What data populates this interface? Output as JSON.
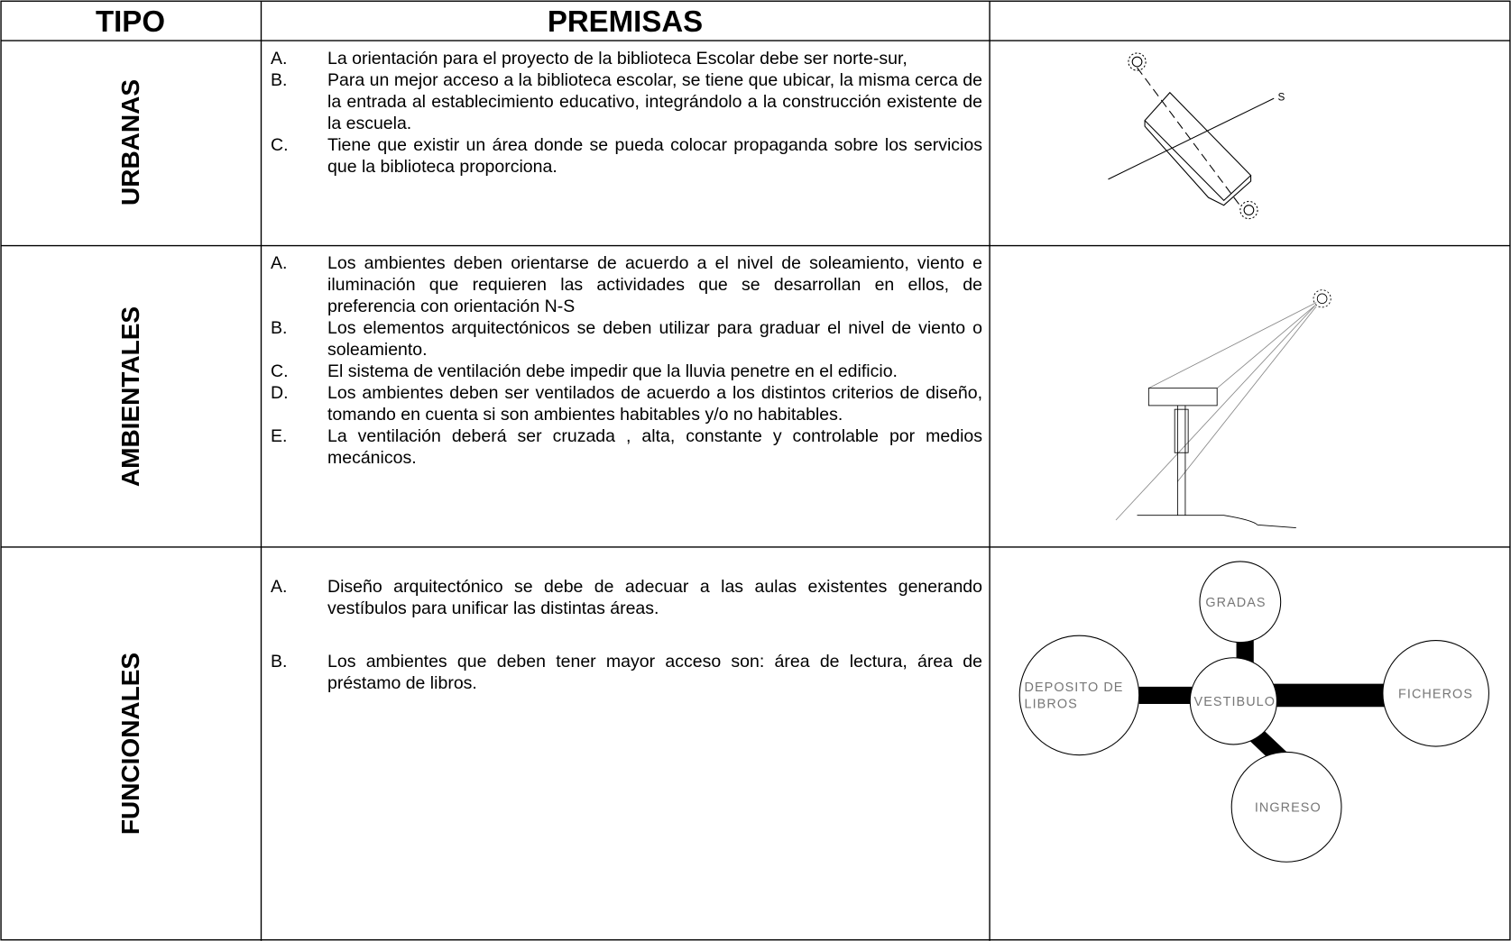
{
  "header": {
    "columns": [
      "TIPO",
      "PREMISAS"
    ]
  },
  "rows": [
    {
      "tipo": "URBANAS",
      "premisas": [
        {
          "letter": "A.",
          "text": "La orientación para el proyecto de la biblioteca Escolar debe ser norte-sur,"
        },
        {
          "letter": "B.",
          "text": "Para un mejor acceso a la biblioteca escolar, se tiene que ubicar, la misma cerca de la entrada al establecimiento educativo, integrándolo a la construcción existente de la escuela."
        },
        {
          "letter": "C.",
          "text": "Tiene que existir un área donde se pueda colocar propaganda sobre los servicios que la biblioteca proporciona."
        }
      ]
    },
    {
      "tipo": "AMBIENTALES",
      "premisas": [
        {
          "letter": "A.",
          "text": "Los ambientes deben orientarse de acuerdo a el nivel de soleamiento, viento e iluminación que requieren las actividades que se desarrollan en ellos, de preferencia con orientación N-S"
        },
        {
          "letter": "B.",
          "text": "Los elementos arquitectónicos se deben utilizar para graduar el nivel de viento o soleamiento."
        },
        {
          "letter": "C.",
          "text": "El sistema de ventilación debe impedir que la lluvia penetre en el edificio."
        },
        {
          "letter": "D.",
          "text": "Los ambientes deben ser ventilados de acuerdo a los distintos criterios de diseño, tomando en cuenta si son ambientes habitables y/o no habitables."
        },
        {
          "letter": "E.",
          "text": "La ventilación deberá ser cruzada , alta, constante y controlable por medios mecánicos."
        }
      ]
    },
    {
      "tipo": "FUNCIONALES",
      "premisas": [
        {
          "letter": "A.",
          "text": "Diseño arquitectónico se debe de adecuar a las aulas existentes generando vestíbulos para unificar las distintas áreas."
        },
        {
          "letter": "B.",
          "text": "Los ambientes que deben tener mayor acceso son: área de lectura, área de préstamo de libros."
        }
      ]
    }
  ],
  "diagrams": {
    "urban": {
      "label": "S"
    },
    "functional": {
      "nodes": [
        {
          "lines": [
            "GRADAS"
          ]
        },
        {
          "lines": [
            "DEPOSITO DE",
            "LIBROS"
          ]
        },
        {
          "lines": [
            "VESTIBULO"
          ]
        },
        {
          "lines": [
            "FICHEROS"
          ]
        },
        {
          "lines": [
            "INGRESO"
          ]
        }
      ]
    }
  }
}
